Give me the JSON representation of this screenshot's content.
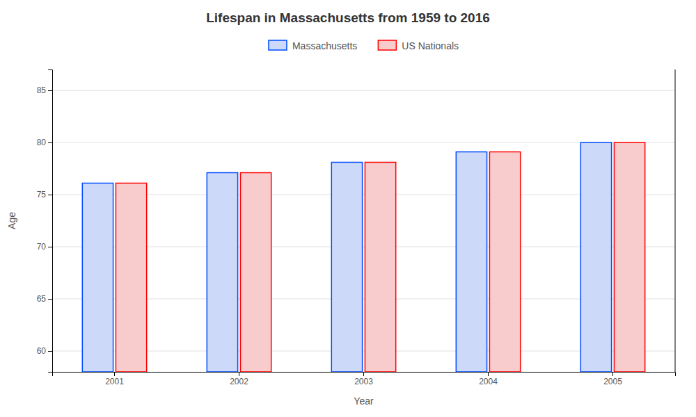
{
  "chart_data": {
    "type": "bar",
    "title": "Lifespan in Massachusetts from 1959 to 2016",
    "xlabel": "Year",
    "ylabel": "Age",
    "categories": [
      "2001",
      "2002",
      "2003",
      "2004",
      "2005"
    ],
    "series": [
      {
        "name": "Massachusetts",
        "color": "#ccd9f8",
        "values": [
          76.1,
          77.1,
          78.1,
          79.1,
          80.0
        ]
      },
      {
        "name": "US Nationals",
        "color": "#f8cccc",
        "values": [
          76.1,
          77.1,
          78.1,
          79.1,
          80.0
        ]
      }
    ],
    "ylim": [
      58,
      87
    ],
    "yticks": [
      60,
      65,
      70,
      75,
      80,
      85
    ],
    "grid": true,
    "legend": "top"
  }
}
